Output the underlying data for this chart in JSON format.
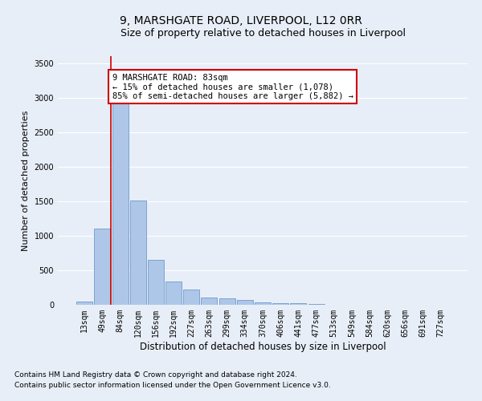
{
  "title_line1": "9, MARSHGATE ROAD, LIVERPOOL, L12 0RR",
  "title_line2": "Size of property relative to detached houses in Liverpool",
  "xlabel": "Distribution of detached houses by size in Liverpool",
  "ylabel": "Number of detached properties",
  "categories": [
    "13sqm",
    "49sqm",
    "84sqm",
    "120sqm",
    "156sqm",
    "192sqm",
    "227sqm",
    "263sqm",
    "299sqm",
    "334sqm",
    "370sqm",
    "406sqm",
    "441sqm",
    "477sqm",
    "513sqm",
    "549sqm",
    "584sqm",
    "620sqm",
    "656sqm",
    "691sqm",
    "727sqm"
  ],
  "values": [
    50,
    1100,
    2950,
    1510,
    650,
    340,
    215,
    105,
    90,
    65,
    35,
    20,
    20,
    15,
    0,
    0,
    0,
    0,
    0,
    0,
    0
  ],
  "bar_color": "#aec6e8",
  "bar_edge_color": "#5a8fc4",
  "vline_x": 1.5,
  "vline_color": "#cc0000",
  "annotation_text": "9 MARSHGATE ROAD: 83sqm\n← 15% of detached houses are smaller (1,078)\n85% of semi-detached houses are larger (5,882) →",
  "annotation_box_color": "#ffffff",
  "annotation_box_edge": "#cc0000",
  "ylim": [
    0,
    3600
  ],
  "yticks": [
    0,
    500,
    1000,
    1500,
    2000,
    2500,
    3000,
    3500
  ],
  "footnote1": "Contains HM Land Registry data © Crown copyright and database right 2024.",
  "footnote2": "Contains public sector information licensed under the Open Government Licence v3.0.",
  "background_color": "#e8eef7",
  "plot_bg_color": "#e8eef7",
  "grid_color": "#ffffff",
  "title1_fontsize": 10,
  "title2_fontsize": 9,
  "xlabel_fontsize": 8.5,
  "ylabel_fontsize": 8,
  "tick_fontsize": 7,
  "footnote_fontsize": 6.5,
  "ann_fontsize": 7.5
}
